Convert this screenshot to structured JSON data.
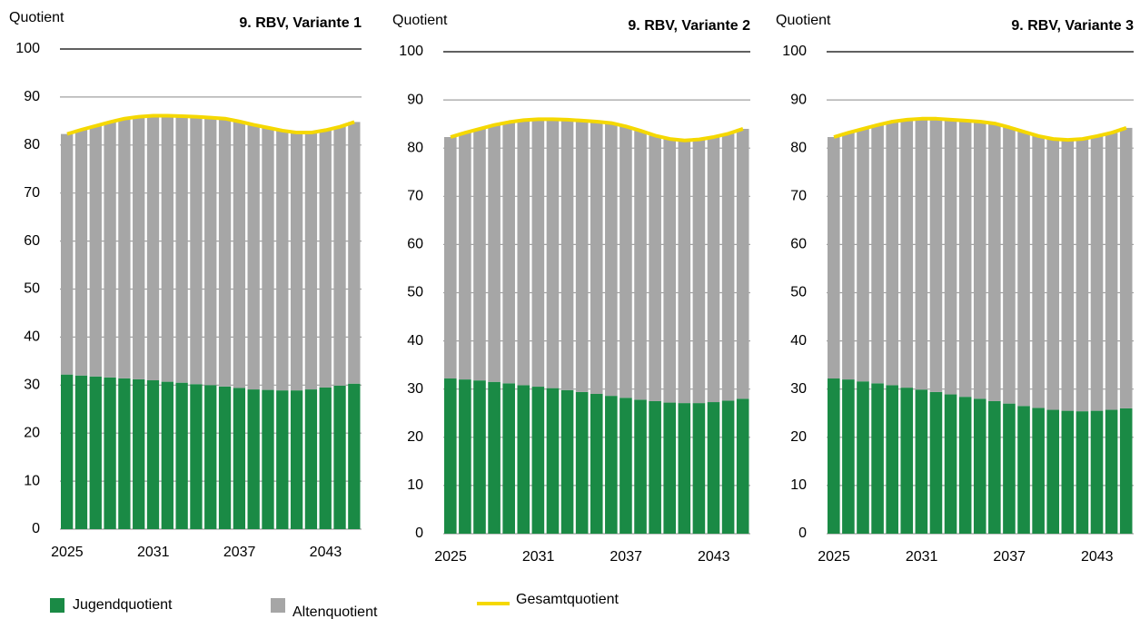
{
  "chart_data": [
    {
      "type": "stacked_bar_line",
      "title": "9. RBV, Variante 1",
      "ylabel": "Quotient",
      "categories": [
        2025,
        null,
        null,
        null,
        null,
        null,
        2031,
        null,
        null,
        null,
        null,
        null,
        2037,
        null,
        null,
        null,
        null,
        null,
        2043,
        null,
        null
      ],
      "ylim": [
        0,
        100
      ],
      "yticks": [
        0,
        10,
        20,
        30,
        40,
        50,
        60,
        70,
        80,
        90,
        100
      ],
      "grid": true,
      "legend": "bottom",
      "series": [
        {
          "name": "Jugendquotient",
          "color": "#1a8a45",
          "kind": "bar",
          "values": [
            32.2,
            32.0,
            31.8,
            31.6,
            31.4,
            31.2,
            31.0,
            30.7,
            30.5,
            30.2,
            30.0,
            29.7,
            29.4,
            29.1,
            29.0,
            28.9,
            28.9,
            29.1,
            29.5,
            29.9,
            30.3
          ]
        },
        {
          "name": "Altenquotient",
          "color": "#a6a6a6",
          "kind": "bar",
          "values": [
            50.1,
            51.2,
            52.2,
            53.2,
            54.1,
            54.7,
            55.1,
            55.4,
            55.5,
            55.7,
            55.7,
            55.8,
            55.5,
            55.1,
            54.6,
            54.1,
            53.7,
            53.5,
            53.6,
            53.9,
            54.5
          ]
        },
        {
          "name": "Gesamtquotient",
          "color": "#f5d800",
          "kind": "line",
          "values": [
            82.3,
            83.2,
            84.0,
            84.8,
            85.5,
            85.9,
            86.1,
            86.1,
            86.0,
            85.9,
            85.7,
            85.5,
            84.9,
            84.2,
            83.6,
            83.0,
            82.6,
            82.6,
            83.1,
            83.8,
            84.8
          ]
        }
      ]
    },
    {
      "type": "stacked_bar_line",
      "title": "9. RBV, Variante 2",
      "ylabel": "Quotient",
      "categories": [
        2025,
        null,
        null,
        null,
        null,
        null,
        2031,
        null,
        null,
        null,
        null,
        null,
        2037,
        null,
        null,
        null,
        null,
        null,
        2043,
        null,
        null
      ],
      "ylim": [
        0,
        100
      ],
      "yticks": [
        0,
        10,
        20,
        30,
        40,
        50,
        60,
        70,
        80,
        90,
        100
      ],
      "grid": true,
      "series": [
        {
          "color": "#1a8a45",
          "kind": "bar",
          "values": [
            32.2,
            32.0,
            31.8,
            31.5,
            31.2,
            30.8,
            30.5,
            30.2,
            29.8,
            29.4,
            29.0,
            28.6,
            28.2,
            27.8,
            27.5,
            27.2,
            27.1,
            27.1,
            27.3,
            27.6,
            28.0
          ]
        },
        {
          "color": "#a6a6a6",
          "kind": "bar",
          "values": [
            50.1,
            51.2,
            52.2,
            53.3,
            54.2,
            55.0,
            55.5,
            55.8,
            56.1,
            56.3,
            56.5,
            56.6,
            56.3,
            55.8,
            55.1,
            54.7,
            54.5,
            54.7,
            55.0,
            55.4,
            56.0
          ]
        },
        {
          "color": "#f5d800",
          "kind": "line",
          "values": [
            82.3,
            83.2,
            84.0,
            84.8,
            85.4,
            85.8,
            86.0,
            86.0,
            85.9,
            85.7,
            85.5,
            85.2,
            84.5,
            83.6,
            82.6,
            81.9,
            81.6,
            81.8,
            82.3,
            83.0,
            84.0
          ]
        }
      ]
    },
    {
      "type": "stacked_bar_line",
      "title": "9. RBV, Variante 3",
      "ylabel": "Quotient",
      "categories": [
        2025,
        null,
        null,
        null,
        null,
        null,
        2031,
        null,
        null,
        null,
        null,
        null,
        2037,
        null,
        null,
        null,
        null,
        null,
        2043,
        null,
        null
      ],
      "ylim": [
        0,
        100
      ],
      "yticks": [
        0,
        10,
        20,
        30,
        40,
        50,
        60,
        70,
        80,
        90,
        100
      ],
      "grid": true,
      "series": [
        {
          "color": "#1a8a45",
          "kind": "bar",
          "values": [
            32.2,
            32.0,
            31.6,
            31.2,
            30.8,
            30.3,
            29.9,
            29.4,
            28.9,
            28.4,
            28.0,
            27.5,
            27.0,
            26.5,
            26.1,
            25.7,
            25.5,
            25.4,
            25.5,
            25.7,
            26.0
          ]
        },
        {
          "color": "#a6a6a6",
          "kind": "bar",
          "values": [
            50.1,
            51.2,
            52.4,
            53.6,
            54.7,
            55.6,
            56.2,
            56.7,
            57.0,
            57.3,
            57.5,
            57.6,
            57.3,
            56.9,
            56.4,
            56.2,
            56.2,
            56.5,
            57.0,
            57.5,
            58.2
          ]
        },
        {
          "color": "#f5d800",
          "kind": "line",
          "values": [
            82.3,
            83.2,
            84.0,
            84.8,
            85.5,
            85.9,
            86.1,
            86.1,
            85.9,
            85.7,
            85.5,
            85.1,
            84.3,
            83.4,
            82.5,
            81.9,
            81.7,
            81.9,
            82.5,
            83.2,
            84.2
          ]
        }
      ]
    }
  ]
}
